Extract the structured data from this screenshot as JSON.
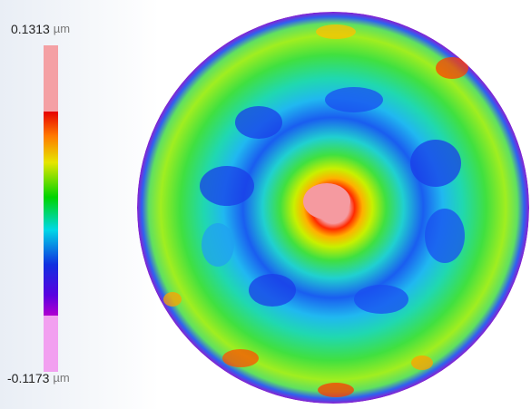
{
  "colorbar": {
    "max": 0.1313,
    "min": -0.1173,
    "unit": "µm"
  }
}
